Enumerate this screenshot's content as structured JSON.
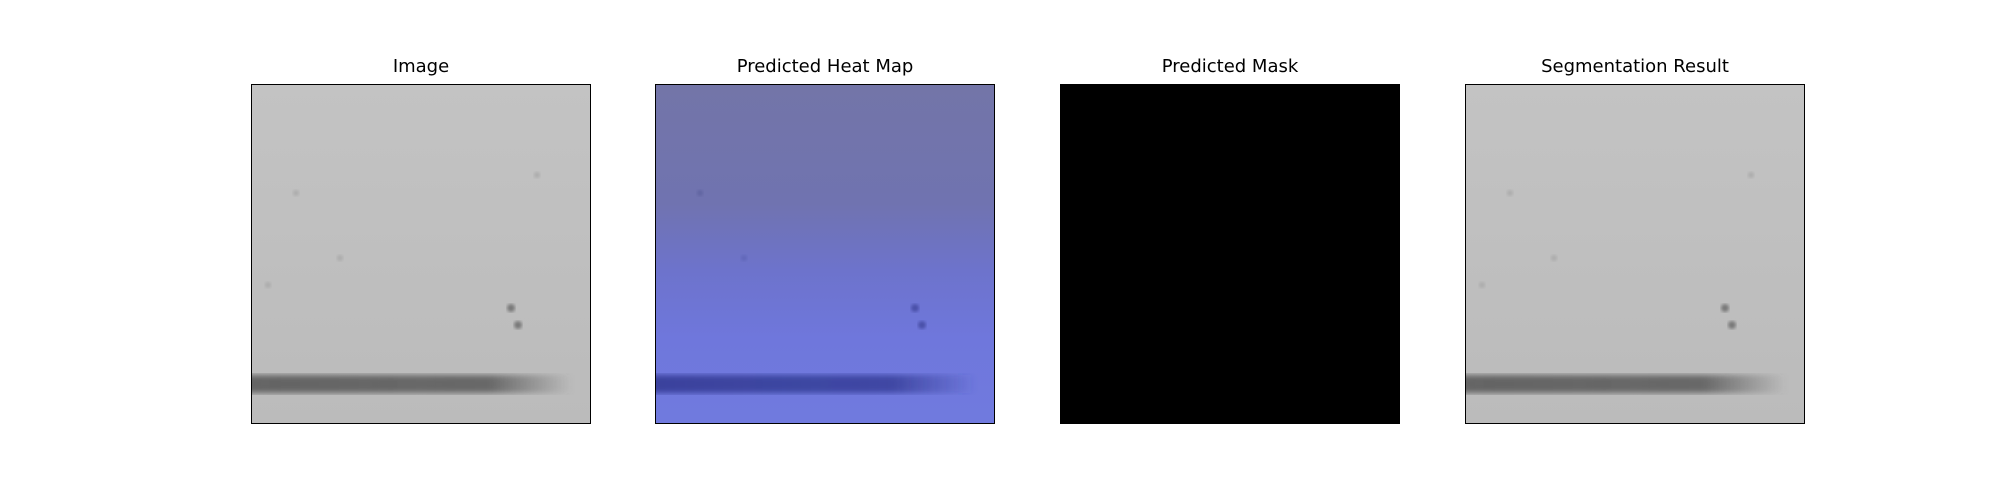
{
  "figure": {
    "panels": [
      {
        "title": "Image",
        "kind": "grayscale-image"
      },
      {
        "title": "Predicted Heat Map",
        "kind": "heatmap-overlay"
      },
      {
        "title": "Predicted Mask",
        "kind": "binary-mask"
      },
      {
        "title": "Segmentation Result",
        "kind": "segmentation-overlay"
      }
    ]
  },
  "colors": {
    "image_background": "#c0c0c0",
    "image_streak": "#5a5a5a",
    "heatmap_top": "#7074a6",
    "heatmap_bottom": "#6f7ae0",
    "heatmap_streak": "#3a42a0",
    "mask_fill": "#000000",
    "frame_border": "#000000"
  }
}
